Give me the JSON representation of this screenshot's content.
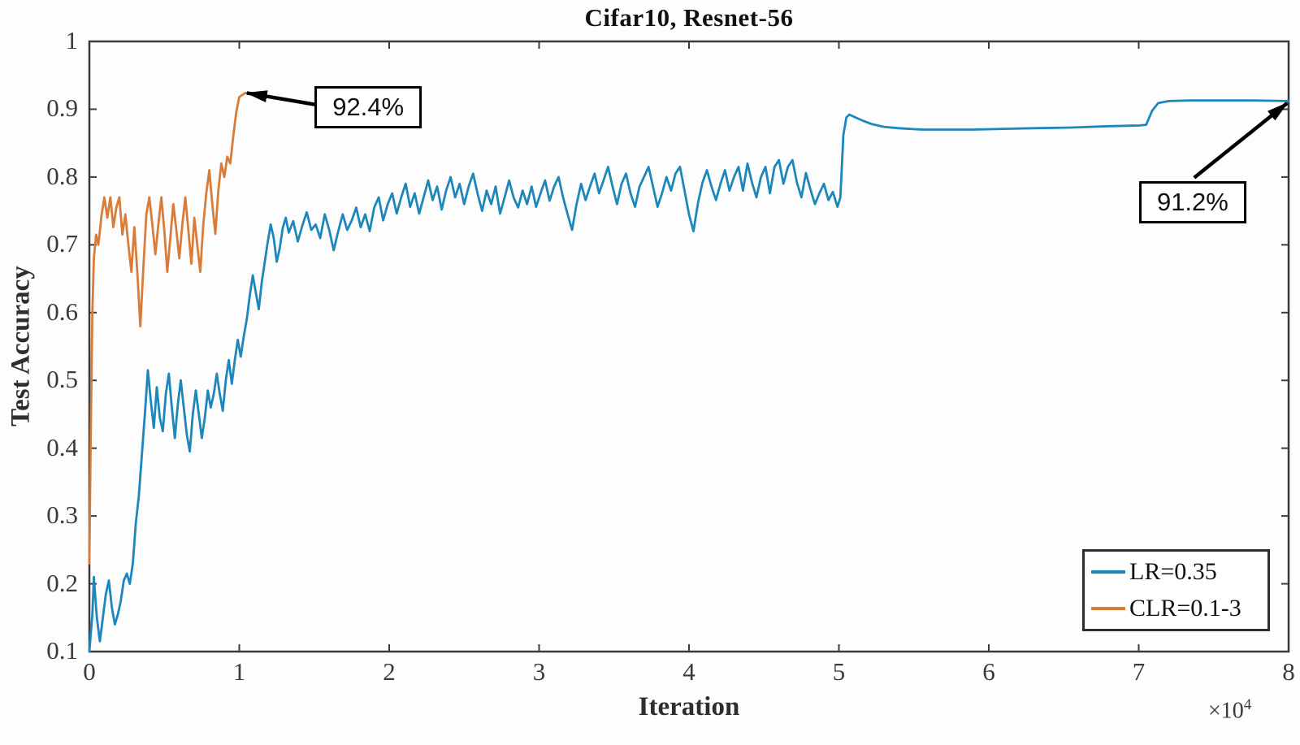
{
  "chart_data": {
    "type": "line",
    "title": "Cifar10, Resnet-56",
    "xlabel": "Iteration",
    "ylabel": "Test Accuracy",
    "x_scale": {
      "prefix": "×10",
      "exponent": "4"
    },
    "x_unit": "iterations ×10^4",
    "x_range": [
      0,
      8
    ],
    "y_range": [
      0.1,
      1
    ],
    "x_ticks": [
      0,
      1,
      2,
      3,
      4,
      5,
      6,
      7,
      8
    ],
    "x_tick_labels": [
      "0",
      "1",
      "2",
      "3",
      "4",
      "5",
      "6",
      "7",
      "8"
    ],
    "y_ticks": [
      0.1,
      0.2,
      0.3,
      0.4,
      0.5,
      0.6,
      0.7,
      0.8,
      0.9,
      1
    ],
    "y_tick_labels": [
      "0.1",
      "0.2",
      "0.3",
      "0.4",
      "0.5",
      "0.6",
      "0.7",
      "0.8",
      "0.9",
      "1"
    ],
    "grid": false,
    "axis_color": "#3a3a3a",
    "legend": {
      "position": "bottom-right",
      "entries": [
        {
          "label": "LR=0.35",
          "color": "#1d87bb"
        },
        {
          "label": "CLR=0.1-3",
          "color": "#d97c3a"
        }
      ]
    },
    "series": [
      {
        "name": "LR=0.35",
        "color": "#1d87bb",
        "final_value": 0.912,
        "points": [
          [
            0.0,
            0.1
          ],
          [
            0.02,
            0.155
          ],
          [
            0.03,
            0.21
          ],
          [
            0.05,
            0.15
          ],
          [
            0.07,
            0.115
          ],
          [
            0.09,
            0.15
          ],
          [
            0.11,
            0.185
          ],
          [
            0.13,
            0.205
          ],
          [
            0.15,
            0.165
          ],
          [
            0.17,
            0.14
          ],
          [
            0.19,
            0.155
          ],
          [
            0.21,
            0.175
          ],
          [
            0.23,
            0.205
          ],
          [
            0.25,
            0.215
          ],
          [
            0.27,
            0.2
          ],
          [
            0.29,
            0.23
          ],
          [
            0.31,
            0.29
          ],
          [
            0.33,
            0.33
          ],
          [
            0.35,
            0.39
          ],
          [
            0.37,
            0.45
          ],
          [
            0.39,
            0.515
          ],
          [
            0.41,
            0.47
          ],
          [
            0.43,
            0.43
          ],
          [
            0.45,
            0.49
          ],
          [
            0.47,
            0.445
          ],
          [
            0.49,
            0.425
          ],
          [
            0.51,
            0.48
          ],
          [
            0.53,
            0.51
          ],
          [
            0.55,
            0.46
          ],
          [
            0.57,
            0.415
          ],
          [
            0.59,
            0.465
          ],
          [
            0.61,
            0.5
          ],
          [
            0.63,
            0.46
          ],
          [
            0.65,
            0.42
          ],
          [
            0.67,
            0.395
          ],
          [
            0.69,
            0.45
          ],
          [
            0.71,
            0.485
          ],
          [
            0.73,
            0.45
          ],
          [
            0.75,
            0.415
          ],
          [
            0.77,
            0.445
          ],
          [
            0.79,
            0.485
          ],
          [
            0.81,
            0.46
          ],
          [
            0.83,
            0.48
          ],
          [
            0.85,
            0.51
          ],
          [
            0.87,
            0.48
          ],
          [
            0.89,
            0.455
          ],
          [
            0.91,
            0.5
          ],
          [
            0.93,
            0.53
          ],
          [
            0.95,
            0.495
          ],
          [
            0.97,
            0.53
          ],
          [
            0.99,
            0.56
          ],
          [
            1.01,
            0.535
          ],
          [
            1.03,
            0.565
          ],
          [
            1.05,
            0.59
          ],
          [
            1.07,
            0.625
          ],
          [
            1.09,
            0.655
          ],
          [
            1.11,
            0.63
          ],
          [
            1.13,
            0.605
          ],
          [
            1.15,
            0.645
          ],
          [
            1.17,
            0.675
          ],
          [
            1.19,
            0.705
          ],
          [
            1.21,
            0.73
          ],
          [
            1.23,
            0.71
          ],
          [
            1.25,
            0.675
          ],
          [
            1.27,
            0.695
          ],
          [
            1.29,
            0.725
          ],
          [
            1.31,
            0.74
          ],
          [
            1.33,
            0.718
          ],
          [
            1.36,
            0.735
          ],
          [
            1.39,
            0.705
          ],
          [
            1.42,
            0.728
          ],
          [
            1.45,
            0.748
          ],
          [
            1.48,
            0.722
          ],
          [
            1.51,
            0.73
          ],
          [
            1.54,
            0.71
          ],
          [
            1.57,
            0.745
          ],
          [
            1.6,
            0.722
          ],
          [
            1.63,
            0.692
          ],
          [
            1.66,
            0.72
          ],
          [
            1.69,
            0.745
          ],
          [
            1.72,
            0.722
          ],
          [
            1.75,
            0.736
          ],
          [
            1.78,
            0.755
          ],
          [
            1.81,
            0.726
          ],
          [
            1.84,
            0.745
          ],
          [
            1.87,
            0.72
          ],
          [
            1.9,
            0.755
          ],
          [
            1.93,
            0.77
          ],
          [
            1.96,
            0.736
          ],
          [
            1.99,
            0.76
          ],
          [
            2.02,
            0.776
          ],
          [
            2.05,
            0.746
          ],
          [
            2.08,
            0.77
          ],
          [
            2.11,
            0.79
          ],
          [
            2.14,
            0.756
          ],
          [
            2.17,
            0.776
          ],
          [
            2.2,
            0.746
          ],
          [
            2.23,
            0.77
          ],
          [
            2.26,
            0.795
          ],
          [
            2.29,
            0.766
          ],
          [
            2.32,
            0.786
          ],
          [
            2.35,
            0.752
          ],
          [
            2.38,
            0.78
          ],
          [
            2.41,
            0.8
          ],
          [
            2.44,
            0.77
          ],
          [
            2.47,
            0.79
          ],
          [
            2.5,
            0.76
          ],
          [
            2.53,
            0.786
          ],
          [
            2.56,
            0.805
          ],
          [
            2.59,
            0.775
          ],
          [
            2.62,
            0.75
          ],
          [
            2.65,
            0.78
          ],
          [
            2.68,
            0.76
          ],
          [
            2.71,
            0.786
          ],
          [
            2.74,
            0.746
          ],
          [
            2.77,
            0.77
          ],
          [
            2.8,
            0.795
          ],
          [
            2.83,
            0.77
          ],
          [
            2.86,
            0.755
          ],
          [
            2.89,
            0.78
          ],
          [
            2.92,
            0.76
          ],
          [
            2.95,
            0.786
          ],
          [
            2.98,
            0.756
          ],
          [
            3.01,
            0.776
          ],
          [
            3.04,
            0.795
          ],
          [
            3.07,
            0.765
          ],
          [
            3.1,
            0.786
          ],
          [
            3.13,
            0.8
          ],
          [
            3.16,
            0.77
          ],
          [
            3.19,
            0.745
          ],
          [
            3.22,
            0.722
          ],
          [
            3.25,
            0.76
          ],
          [
            3.28,
            0.79
          ],
          [
            3.31,
            0.766
          ],
          [
            3.34,
            0.786
          ],
          [
            3.37,
            0.805
          ],
          [
            3.4,
            0.776
          ],
          [
            3.43,
            0.795
          ],
          [
            3.46,
            0.815
          ],
          [
            3.49,
            0.786
          ],
          [
            3.52,
            0.76
          ],
          [
            3.55,
            0.79
          ],
          [
            3.58,
            0.805
          ],
          [
            3.61,
            0.776
          ],
          [
            3.64,
            0.756
          ],
          [
            3.67,
            0.786
          ],
          [
            3.7,
            0.8
          ],
          [
            3.73,
            0.815
          ],
          [
            3.76,
            0.786
          ],
          [
            3.79,
            0.756
          ],
          [
            3.82,
            0.776
          ],
          [
            3.85,
            0.8
          ],
          [
            3.88,
            0.78
          ],
          [
            3.91,
            0.805
          ],
          [
            3.94,
            0.815
          ],
          [
            3.97,
            0.78
          ],
          [
            4.0,
            0.745
          ],
          [
            4.03,
            0.72
          ],
          [
            4.06,
            0.762
          ],
          [
            4.09,
            0.792
          ],
          [
            4.12,
            0.81
          ],
          [
            4.15,
            0.786
          ],
          [
            4.18,
            0.766
          ],
          [
            4.21,
            0.79
          ],
          [
            4.24,
            0.81
          ],
          [
            4.27,
            0.78
          ],
          [
            4.3,
            0.8
          ],
          [
            4.33,
            0.815
          ],
          [
            4.36,
            0.78
          ],
          [
            4.39,
            0.82
          ],
          [
            4.42,
            0.792
          ],
          [
            4.45,
            0.77
          ],
          [
            4.48,
            0.8
          ],
          [
            4.51,
            0.815
          ],
          [
            4.54,
            0.776
          ],
          [
            4.57,
            0.815
          ],
          [
            4.6,
            0.825
          ],
          [
            4.63,
            0.79
          ],
          [
            4.66,
            0.815
          ],
          [
            4.69,
            0.825
          ],
          [
            4.72,
            0.792
          ],
          [
            4.75,
            0.77
          ],
          [
            4.78,
            0.806
          ],
          [
            4.81,
            0.782
          ],
          [
            4.84,
            0.76
          ],
          [
            4.87,
            0.776
          ],
          [
            4.9,
            0.79
          ],
          [
            4.93,
            0.766
          ],
          [
            4.96,
            0.778
          ],
          [
            4.99,
            0.756
          ],
          [
            5.01,
            0.77
          ],
          [
            5.03,
            0.862
          ],
          [
            5.05,
            0.888
          ],
          [
            5.07,
            0.892
          ],
          [
            5.11,
            0.888
          ],
          [
            5.16,
            0.883
          ],
          [
            5.22,
            0.878
          ],
          [
            5.3,
            0.874
          ],
          [
            5.4,
            0.872
          ],
          [
            5.55,
            0.87
          ],
          [
            5.7,
            0.87
          ],
          [
            5.9,
            0.87
          ],
          [
            6.1,
            0.871
          ],
          [
            6.3,
            0.872
          ],
          [
            6.55,
            0.873
          ],
          [
            6.8,
            0.875
          ],
          [
            7.0,
            0.876
          ],
          [
            7.05,
            0.877
          ],
          [
            7.09,
            0.898
          ],
          [
            7.13,
            0.909
          ],
          [
            7.2,
            0.912
          ],
          [
            7.35,
            0.913
          ],
          [
            7.55,
            0.913
          ],
          [
            7.75,
            0.913
          ],
          [
            8.0,
            0.912
          ]
        ]
      },
      {
        "name": "CLR=0.1-3",
        "color": "#d97c3a",
        "final_value": 0.924,
        "points": [
          [
            0.0,
            0.23
          ],
          [
            0.01,
            0.43
          ],
          [
            0.02,
            0.6
          ],
          [
            0.03,
            0.68
          ],
          [
            0.045,
            0.715
          ],
          [
            0.06,
            0.7
          ],
          [
            0.08,
            0.742
          ],
          [
            0.1,
            0.77
          ],
          [
            0.12,
            0.74
          ],
          [
            0.14,
            0.77
          ],
          [
            0.16,
            0.726
          ],
          [
            0.18,
            0.755
          ],
          [
            0.2,
            0.77
          ],
          [
            0.22,
            0.715
          ],
          [
            0.24,
            0.745
          ],
          [
            0.26,
            0.7
          ],
          [
            0.28,
            0.66
          ],
          [
            0.3,
            0.726
          ],
          [
            0.32,
            0.66
          ],
          [
            0.34,
            0.58
          ],
          [
            0.36,
            0.665
          ],
          [
            0.38,
            0.745
          ],
          [
            0.4,
            0.77
          ],
          [
            0.42,
            0.73
          ],
          [
            0.44,
            0.686
          ],
          [
            0.46,
            0.73
          ],
          [
            0.48,
            0.77
          ],
          [
            0.5,
            0.72
          ],
          [
            0.52,
            0.66
          ],
          [
            0.54,
            0.71
          ],
          [
            0.56,
            0.76
          ],
          [
            0.58,
            0.722
          ],
          [
            0.6,
            0.68
          ],
          [
            0.62,
            0.73
          ],
          [
            0.64,
            0.77
          ],
          [
            0.66,
            0.722
          ],
          [
            0.68,
            0.672
          ],
          [
            0.7,
            0.74
          ],
          [
            0.72,
            0.7
          ],
          [
            0.74,
            0.66
          ],
          [
            0.76,
            0.73
          ],
          [
            0.78,
            0.776
          ],
          [
            0.8,
            0.81
          ],
          [
            0.82,
            0.76
          ],
          [
            0.84,
            0.716
          ],
          [
            0.86,
            0.78
          ],
          [
            0.88,
            0.82
          ],
          [
            0.9,
            0.8
          ],
          [
            0.92,
            0.83
          ],
          [
            0.94,
            0.82
          ],
          [
            0.96,
            0.86
          ],
          [
            0.98,
            0.896
          ],
          [
            1.0,
            0.918
          ],
          [
            1.04,
            0.924
          ]
        ]
      }
    ],
    "annotations": [
      {
        "text": "92.4%",
        "box_center": [
          1.86,
          0.903
        ],
        "arrow_start": [
          1.53,
          0.906
        ],
        "arrow_tip": [
          1.05,
          0.924
        ]
      },
      {
        "text": "91.2%",
        "box_center": [
          7.36,
          0.763
        ],
        "arrow_start": [
          7.37,
          0.799
        ],
        "arrow_tip": [
          7.99,
          0.909
        ]
      }
    ]
  }
}
